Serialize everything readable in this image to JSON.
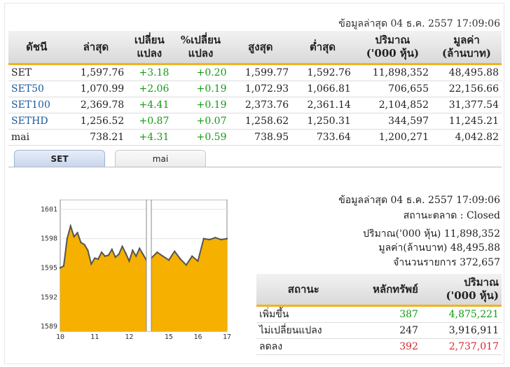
{
  "header": {
    "updated": "ข้อมูลล่าสุด 04 ธ.ค. 2557 17:09:06"
  },
  "index_table": {
    "columns": [
      "ดัชนี",
      "ล่าสุด",
      "เปลี่ยนแปลง",
      "%เปลี่ยนแปลง",
      "สูงสุด",
      "ต่ำสุด",
      "ปริมาณ('000 หุ้น)",
      "มูลค่า(ล้านบาท)"
    ],
    "column_lines": [
      [
        "ดัชนี"
      ],
      [
        "ล่าสุด"
      ],
      [
        "เปลี่ยน",
        "แปลง"
      ],
      [
        "%เปลี่ยน",
        "แปลง"
      ],
      [
        "สูงสุด"
      ],
      [
        "ต่ำสุด"
      ],
      [
        "ปริมาณ",
        "('000 หุ้น)"
      ],
      [
        "มูลค่า",
        "(ล้านบาท)"
      ]
    ],
    "rows": [
      {
        "name": "SET",
        "last": "1,597.76",
        "chg": "+3.18",
        "pct": "+0.20",
        "high": "1,599.77",
        "low": "1,592.76",
        "vol": "11,898,352",
        "val": "48,495.88"
      },
      {
        "name": "SET50",
        "last": "1,070.99",
        "chg": "+2.06",
        "pct": "+0.19",
        "high": "1,072.93",
        "low": "1,066.81",
        "vol": "706,655",
        "val": "22,156.66"
      },
      {
        "name": "SET100",
        "last": "2,369.78",
        "chg": "+4.41",
        "pct": "+0.19",
        "high": "2,373.76",
        "low": "2,361.14",
        "vol": "2,104,852",
        "val": "31,377.54"
      },
      {
        "name": "SETHD",
        "last": "1,256.52",
        "chg": "+0.87",
        "pct": "+0.07",
        "high": "1,258.62",
        "low": "1,250.31",
        "vol": "344,597",
        "val": "11,245.21"
      },
      {
        "name": "mai",
        "last": "738.21",
        "chg": "+4.31",
        "pct": "+0.59",
        "high": "738.95",
        "low": "733.64",
        "vol": "1,200,271",
        "val": "4,042.82"
      }
    ]
  },
  "tabs": [
    {
      "label": "SET",
      "active": true
    },
    {
      "label": "mai",
      "active": false
    }
  ],
  "market": {
    "updated": "ข้อมูลล่าสุด 04 ธ.ค. 2557 17:09:06",
    "status": "สถานะตลาด : Closed",
    "volume": "ปริมาณ('000 หุ้น) 11,898,352",
    "value": "มูลค่า(ล้านบาท) 48,495.88",
    "deals": "จำนวนรายการ 372,657"
  },
  "status_table": {
    "columns": [
      "สถานะ",
      "หลักทรัพย์",
      "ปริมาณ('000 หุ้น)"
    ],
    "vol_lines": [
      "ปริมาณ",
      "('000 หุ้น)"
    ],
    "rows": [
      {
        "label": "เพิ่มขึ้น",
        "count": "387",
        "vol": "4,875,221",
        "color": "#149a14"
      },
      {
        "label": "ไม่เปลี่ยนแปลง",
        "count": "247",
        "vol": "3,916,911",
        "color": "#222222"
      },
      {
        "label": "ลดลง",
        "count": "392",
        "vol": "2,737,017",
        "color": "#d8262f"
      }
    ]
  },
  "chart_data": {
    "type": "area",
    "x_ticks": [
      "10",
      "11",
      "12",
      "15",
      "16",
      "17"
    ],
    "y_ticks": [
      "1601",
      "1598",
      "1595",
      "1592",
      "1589"
    ],
    "ylim": [
      1588.5,
      1602
    ],
    "fill_color": "#f5b000",
    "line_color": "#555555",
    "series": [
      {
        "x": [
          10.0,
          10.1,
          10.2,
          10.3,
          10.4,
          10.5,
          10.6,
          10.7,
          10.8,
          10.9,
          11.0,
          11.1,
          11.2,
          11.3,
          11.4,
          11.5,
          11.6,
          11.7,
          11.8,
          11.9,
          12.0,
          12.1,
          12.2,
          12.3,
          12.4,
          12.5
        ],
        "y": [
          1595.0,
          1595.2,
          1598.0,
          1599.3,
          1598.2,
          1598.6,
          1597.6,
          1597.4,
          1596.8,
          1595.4,
          1596.0,
          1595.9,
          1596.6,
          1596.2,
          1596.3,
          1596.9,
          1596.1,
          1596.4,
          1597.2,
          1596.5,
          1595.7,
          1596.8,
          1596.2,
          1597.0,
          1596.4,
          1595.8
        ]
      },
      {
        "x": [
          14.4,
          14.6,
          14.8,
          15.0,
          15.2,
          15.4,
          15.6,
          15.8,
          16.0,
          16.2,
          16.4,
          16.6,
          16.8,
          17.0
        ],
        "y": [
          1596.0,
          1596.6,
          1596.2,
          1595.8,
          1596.7,
          1595.9,
          1595.3,
          1596.2,
          1595.7,
          1598.0,
          1597.9,
          1598.1,
          1597.9,
          1598.0
        ]
      }
    ]
  }
}
